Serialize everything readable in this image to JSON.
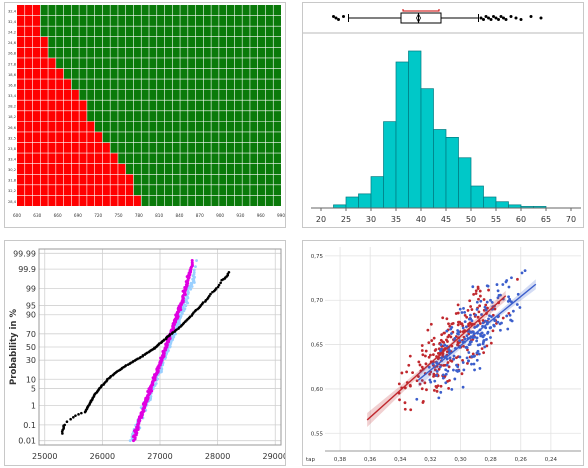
{
  "chart_data": [
    {
      "type": "heatmap",
      "row_labels": [
        "32,4",
        "32,4",
        "24,2",
        "24,6",
        "26,8",
        "27,8",
        "18,6",
        "16,8",
        "33,4",
        "28,2",
        "18,2",
        "26,6",
        "32,5",
        "23,8",
        "33,4",
        "30,2",
        "31,8",
        "32,2",
        "28,4"
      ],
      "x_ticks": [
        "600",
        "630",
        "660",
        "690",
        "720",
        "750",
        "780",
        "810",
        "840",
        "870",
        "900",
        "930",
        "960",
        "990"
      ],
      "red_columns_per_row": [
        3,
        3,
        3,
        4,
        4,
        5,
        6,
        7,
        8,
        9,
        9,
        10,
        11,
        12,
        13,
        14,
        15,
        15,
        16
      ],
      "total_columns": 34,
      "colors": {
        "red": "#ff0000",
        "green": "#0a7a0a",
        "grid": "#ffffff"
      }
    },
    {
      "type": "bar",
      "subtype": "histogram",
      "x_ticks": [
        "20",
        "25",
        "30",
        "35",
        "40",
        "45",
        "50",
        "55",
        "60",
        "65",
        "70"
      ],
      "xlim": [
        18,
        72
      ],
      "bin_width": 2.5,
      "bin_starts": [
        22.5,
        25,
        27.5,
        30,
        32.5,
        35,
        37.5,
        40,
        42.5,
        45,
        47.5,
        50,
        52.5,
        55,
        57.5,
        60,
        62.5,
        65,
        67.5
      ],
      "values": [
        2,
        7,
        9,
        20,
        55,
        93,
        100,
        76,
        50,
        45,
        32,
        14,
        7,
        4,
        2,
        1,
        1,
        0,
        0
      ],
      "boxplot": {
        "min": 25.5,
        "q1": 36,
        "median": 39.5,
        "q3": 44,
        "max": 51.5,
        "outliers": [
          22.5,
          23,
          23.5,
          24.5,
          52,
          52.5,
          53,
          53.5,
          54,
          54.5,
          55,
          55.5,
          56,
          56.5,
          57,
          58,
          59,
          60,
          62,
          64
        ]
      },
      "colors": {
        "bar": "#00c8c8",
        "bar_edge": "#007a80",
        "box": "#000000",
        "bracket": "#cc0000"
      }
    },
    {
      "type": "scatter",
      "subtype": "normal-probability",
      "ylabel": "Probability in %",
      "x_ticks": [
        "25000",
        "26000",
        "27000",
        "28000",
        "29000"
      ],
      "xlim": [
        24900,
        29100
      ],
      "y_ticks": [
        "0.01",
        "0.1",
        "1",
        "5",
        "10",
        "30",
        "50",
        "70",
        "90",
        "95",
        "99",
        "99.9",
        "99.99"
      ],
      "series": [
        {
          "color": "#000000",
          "x": [
            25300,
            25340,
            25700,
            25760,
            25830,
            25920,
            26020,
            26150,
            26300,
            26460,
            26640,
            26800,
            26930,
            27030,
            27150,
            27300,
            27450,
            27600,
            27750,
            27900,
            28080,
            28200
          ],
          "y": [
            0.03,
            0.1,
            0.5,
            1,
            2,
            4,
            7,
            12,
            18,
            25,
            33,
            42,
            50,
            58,
            67,
            76,
            85,
            92,
            96,
            98.5,
            99.6,
            99.85
          ]
        },
        {
          "color": "#e000e0",
          "x": [
            26550,
            26620,
            26700,
            26780,
            26860,
            26940,
            27020,
            27100,
            27180,
            27260,
            27340,
            27420,
            27490,
            27550
          ],
          "y": [
            0.01,
            0.08,
            0.5,
            2,
            6,
            15,
            30,
            50,
            70,
            85,
            94,
            98.5,
            99.7,
            99.97
          ]
        },
        {
          "color": "#9ad0ff",
          "x": [
            26500,
            26600,
            26700,
            26800,
            26900,
            27000,
            27100,
            27200,
            27300,
            27400,
            27500,
            27620
          ],
          "y": [
            0.01,
            0.06,
            0.4,
            2,
            7,
            18,
            40,
            62,
            82,
            94,
            99,
            99.97
          ]
        }
      ]
    },
    {
      "type": "scatter",
      "x_ticks": [
        "0,38",
        "0,36",
        "0,34",
        "0,32",
        "0,30",
        "0,28",
        "0,26",
        "0,24"
      ],
      "x_axis_label": "tap",
      "xlim": [
        0.39,
        0.22
      ],
      "y_ticks": [
        "0,55",
        "0,60",
        "0,65",
        "0,70",
        "0,75"
      ],
      "ylim": [
        0.53,
        0.76
      ],
      "series": [
        {
          "color": "#c0282e",
          "regression": {
            "x1": 0.362,
            "y1": 0.565,
            "x2": 0.27,
            "y2": 0.705
          }
        },
        {
          "color": "#3c5fcc",
          "regression": {
            "x1": 0.328,
            "y1": 0.61,
            "x2": 0.25,
            "y2": 0.718
          }
        }
      ]
    }
  ]
}
